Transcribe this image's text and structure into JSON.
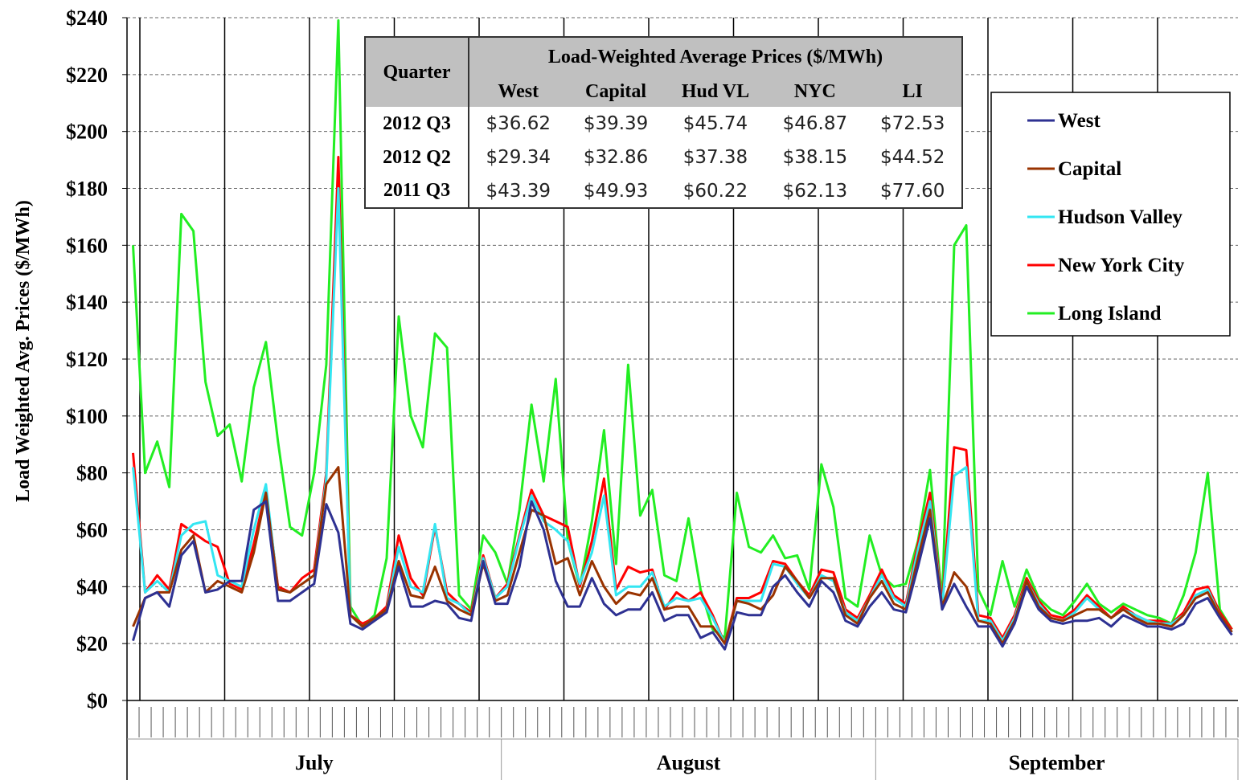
{
  "chart_data": {
    "type": "line",
    "y_label": "Load Weighted Avg. Prices  ($/MWh)",
    "categories": [
      null,
      null,
      null,
      null,
      null,
      null,
      null,
      null,
      null,
      null,
      null,
      null,
      null,
      null,
      null,
      null,
      null,
      null,
      null,
      null,
      null,
      null,
      null,
      null,
      null,
      null,
      null,
      null,
      null,
      null,
      null,
      null,
      null,
      null,
      null,
      null,
      null,
      null,
      null,
      null,
      null,
      null,
      null,
      null,
      null,
      null,
      null,
      null,
      null,
      null,
      null,
      null,
      null,
      null,
      null,
      null,
      null,
      null,
      null,
      null,
      null,
      null,
      null,
      null,
      null,
      null,
      null,
      null,
      null,
      null,
      null,
      null,
      null,
      null,
      null,
      null,
      null,
      null,
      null,
      null,
      null,
      null,
      null,
      null,
      null,
      null,
      null,
      null,
      null,
      null,
      null,
      null
    ],
    "months": [
      "July",
      "August",
      "September"
    ],
    "month_days": [
      31,
      31,
      30
    ],
    "ylim": [
      0,
      240
    ],
    "yticks": [
      {
        "value": 0,
        "label": "$0"
      },
      {
        "value": 20,
        "label": "$20"
      },
      {
        "value": 40,
        "label": "$40"
      },
      {
        "value": 60,
        "label": "$60"
      },
      {
        "value": 80,
        "label": "$80"
      },
      {
        "value": 100,
        "label": "$100"
      },
      {
        "value": 120,
        "label": "$120"
      },
      {
        "value": 140,
        "label": "$140"
      },
      {
        "value": 160,
        "label": "$160"
      },
      {
        "value": 180,
        "label": "$180"
      },
      {
        "value": 200,
        "label": "$200"
      },
      {
        "value": 220,
        "label": "$220"
      },
      {
        "value": 240,
        "label": "$240"
      }
    ],
    "grid": true,
    "legend": "upper right",
    "series": [
      {
        "name": "West",
        "color": "#2e3192",
        "values": [
          21,
          36,
          38,
          33,
          51,
          56,
          38,
          39,
          42,
          42,
          67,
          70,
          35,
          35,
          38,
          41,
          69,
          59,
          27,
          25,
          28,
          31,
          47,
          33,
          33,
          35,
          34,
          29,
          28,
          49,
          34,
          34,
          47,
          70,
          60,
          42,
          33,
          33,
          43,
          34,
          30,
          32,
          32,
          38,
          28,
          30,
          30,
          22,
          24,
          18,
          31,
          30,
          30,
          40,
          44,
          38,
          33,
          42,
          38,
          28,
          26,
          33,
          38,
          32,
          31,
          47,
          64,
          32,
          41,
          33,
          26,
          26,
          19,
          27,
          40,
          32,
          28,
          27,
          28,
          28,
          29,
          26,
          30,
          28,
          26,
          26,
          25,
          27,
          34,
          36,
          29,
          23
        ]
      },
      {
        "name": "Capital",
        "color": "#993300",
        "values": [
          26,
          36,
          38,
          38,
          53,
          58,
          38,
          42,
          40,
          38,
          52,
          73,
          39,
          38,
          41,
          44,
          76,
          82,
          30,
          26,
          29,
          32,
          49,
          37,
          36,
          47,
          35,
          32,
          30,
          48,
          35,
          37,
          52,
          67,
          65,
          48,
          50,
          37,
          49,
          40,
          34,
          38,
          37,
          43,
          32,
          33,
          33,
          26,
          26,
          20,
          35,
          34,
          32,
          37,
          47,
          42,
          36,
          43,
          43,
          30,
          27,
          36,
          42,
          34,
          32,
          50,
          67,
          33,
          45,
          40,
          28,
          27,
          20,
          28,
          42,
          33,
          29,
          28,
          30,
          32,
          32,
          29,
          32,
          29,
          27,
          27,
          26,
          30,
          36,
          38,
          30,
          24
        ]
      },
      {
        "name": "Hudson Valley",
        "color": "#33e6f2",
        "values": [
          82,
          38,
          42,
          38,
          58,
          62,
          63,
          44,
          42,
          40,
          60,
          76,
          39,
          38,
          41,
          44,
          78,
          180,
          30,
          26,
          29,
          32,
          54,
          40,
          38,
          62,
          36,
          34,
          30,
          50,
          36,
          40,
          57,
          72,
          63,
          60,
          56,
          41,
          52,
          72,
          37,
          40,
          40,
          45,
          33,
          36,
          35,
          36,
          29,
          20,
          35,
          35,
          35,
          48,
          47,
          41,
          36,
          44,
          42,
          31,
          28,
          36,
          44,
          36,
          33,
          53,
          70,
          33,
          79,
          82,
          28,
          28,
          21,
          29,
          42,
          34,
          29,
          28,
          31,
          36,
          32,
          29,
          32,
          30,
          28,
          27,
          27,
          30,
          37,
          39,
          30,
          24
        ]
      },
      {
        "name": "New York City",
        "color": "#ff0000",
        "values": [
          87,
          38,
          44,
          39,
          62,
          59,
          56,
          54,
          41,
          39,
          55,
          74,
          40,
          38,
          43,
          46,
          80,
          191,
          30,
          27,
          29,
          33,
          58,
          43,
          37,
          61,
          38,
          34,
          31,
          51,
          36,
          41,
          58,
          74,
          65,
          63,
          61,
          40,
          56,
          78,
          39,
          47,
          45,
          46,
          32,
          38,
          35,
          38,
          30,
          20,
          36,
          36,
          38,
          49,
          48,
          42,
          37,
          46,
          45,
          32,
          29,
          37,
          46,
          37,
          34,
          55,
          73,
          34,
          89,
          88,
          30,
          29,
          22,
          30,
          43,
          35,
          30,
          29,
          32,
          37,
          33,
          29,
          33,
          30,
          28,
          28,
          27,
          31,
          39,
          40,
          31,
          25
        ]
      },
      {
        "name": "Long Island",
        "color": "#22ee22",
        "values": [
          160,
          80,
          91,
          75,
          171,
          165,
          112,
          93,
          97,
          77,
          110,
          126,
          91,
          61,
          58,
          80,
          118,
          239,
          33,
          26,
          30,
          50,
          135,
          100,
          89,
          129,
          124,
          37,
          32,
          58,
          52,
          41,
          67,
          104,
          77,
          113,
          56,
          40,
          63,
          95,
          48,
          118,
          65,
          74,
          44,
          42,
          64,
          39,
          25,
          22,
          73,
          54,
          52,
          58,
          50,
          51,
          39,
          83,
          68,
          36,
          33,
          58,
          44,
          40,
          41,
          56,
          81,
          35,
          160,
          167,
          39,
          30,
          49,
          33,
          46,
          36,
          32,
          30,
          35,
          41,
          34,
          31,
          34,
          32,
          30,
          29,
          27,
          37,
          52,
          80,
          32,
          25
        ]
      }
    ],
    "table": {
      "row_header": "Quarter",
      "title": "Load-Weighted Average Prices ($/MWh)",
      "columns": [
        "West",
        "Capital",
        "Hud VL",
        "NYC",
        "LI"
      ],
      "rows": [
        {
          "label": "2012 Q3",
          "cells": [
            "$36.62",
            "$39.39",
            "$45.74",
            "$46.87",
            "$72.53"
          ]
        },
        {
          "label": "2012 Q2",
          "cells": [
            "$29.34",
            "$32.86",
            "$37.38",
            "$38.15",
            "$44.52"
          ]
        },
        {
          "label": "2011 Q3",
          "cells": [
            "$43.39",
            "$49.93",
            "$60.22",
            "$62.13",
            "$77.60"
          ]
        }
      ]
    }
  }
}
